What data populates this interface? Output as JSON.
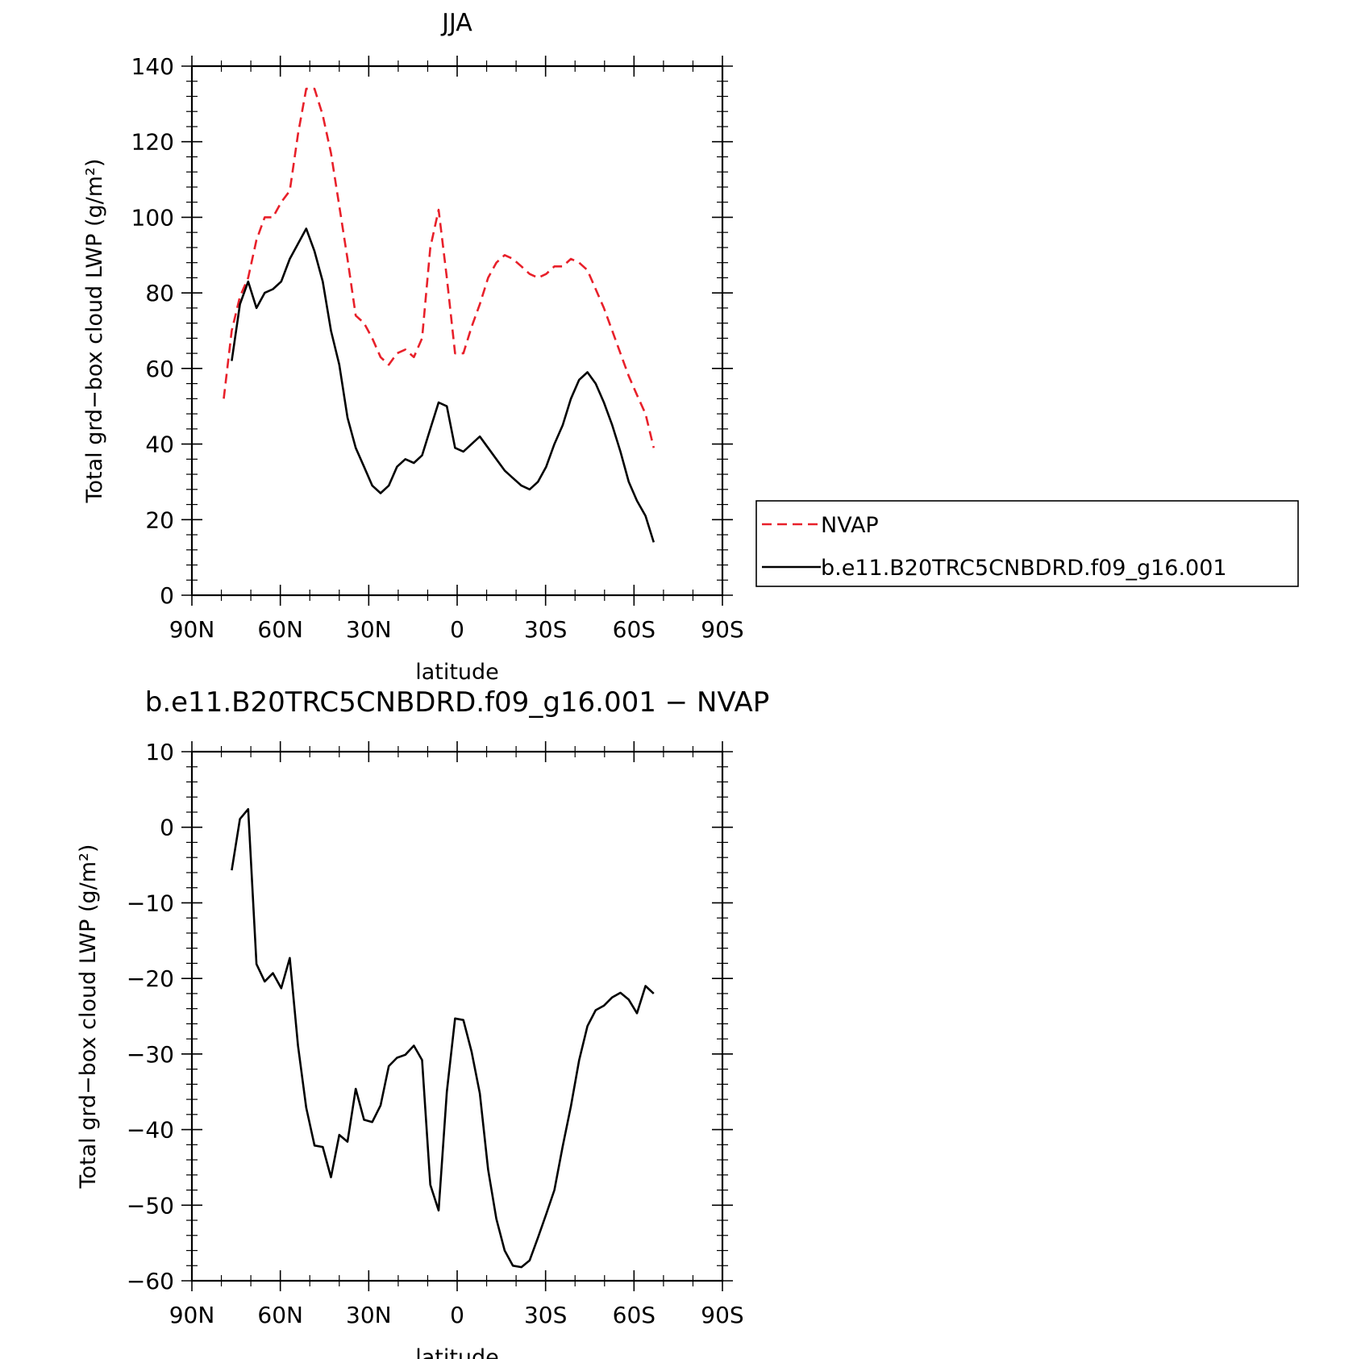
{
  "chart_data": [
    {
      "type": "line",
      "title": "JJA",
      "xlabel": "latitude",
      "ylabel": "Total grd−box cloud LWP (g/m²)",
      "xlim": [
        -90,
        90
      ],
      "ylim": [
        0,
        140
      ],
      "xticks": [
        -90,
        -60,
        -30,
        0,
        30,
        60,
        90
      ],
      "xticklabels": [
        "90N",
        "60N",
        "30N",
        "0",
        "30S",
        "60S",
        "90S"
      ],
      "yticks": [
        0,
        20,
        40,
        60,
        80,
        100,
        120,
        140
      ],
      "yticklabels": [
        "0",
        "20",
        "40",
        "60",
        "80",
        "100",
        "120",
        "140"
      ],
      "legend": "right-outside",
      "series": [
        {
          "name": "NVAP",
          "color": "#e8202a",
          "dash": "dashed",
          "x": [
            -79.2,
            -76.5,
            -73.7,
            -70.9,
            -68.1,
            -65.3,
            -62.5,
            -59.7,
            -56.8,
            -54.0,
            -51.2,
            -48.4,
            -45.6,
            -42.8,
            -40.0,
            -37.2,
            -34.4,
            -31.6,
            -28.8,
            -26.0,
            -23.2,
            -20.4,
            -17.6,
            -14.7,
            -11.9,
            -9.1,
            -6.3,
            -3.5,
            -0.7,
            2.1,
            4.9,
            7.7,
            10.5,
            13.3,
            16.1,
            18.9,
            21.8,
            24.6,
            27.4,
            30.2,
            33.0,
            35.8,
            38.6,
            41.4,
            44.2,
            47.0,
            49.8,
            52.6,
            55.4,
            58.2,
            61.0,
            63.9,
            66.7
          ],
          "values": [
            52,
            70,
            79,
            84,
            94,
            100,
            100,
            104,
            107,
            122,
            134,
            134,
            127,
            117,
            103,
            89,
            74,
            72,
            68,
            63,
            61,
            64,
            65,
            63,
            68,
            92,
            102,
            84,
            64,
            64,
            71,
            77,
            84,
            88,
            90,
            89,
            87,
            85,
            84,
            85,
            87,
            87,
            89,
            88,
            86,
            81,
            76,
            70,
            64,
            58,
            53,
            48,
            39
          ]
        },
        {
          "name": "b.e11.B20TRC5CNBDRD.f09_g16.001",
          "color": "#000000",
          "dash": "solid",
          "x": [
            -76.5,
            -73.7,
            -70.9,
            -68.1,
            -65.3,
            -62.5,
            -59.7,
            -56.8,
            -54.0,
            -51.2,
            -48.4,
            -45.6,
            -42.8,
            -40.0,
            -37.2,
            -34.4,
            -31.6,
            -28.8,
            -26.0,
            -23.2,
            -20.4,
            -17.6,
            -14.7,
            -11.9,
            -9.1,
            -6.3,
            -3.5,
            -0.7,
            2.1,
            4.9,
            7.7,
            10.5,
            13.3,
            16.1,
            18.9,
            21.8,
            24.6,
            27.4,
            30.2,
            33.0,
            35.8,
            38.6,
            41.4,
            44.2,
            47.0,
            49.8,
            52.6,
            55.4,
            58.2,
            61.0,
            63.9,
            66.7
          ],
          "values": [
            62,
            77,
            83,
            76,
            80,
            81,
            83,
            89,
            93,
            97,
            91,
            83,
            70,
            61,
            47,
            39,
            34,
            29,
            27,
            29,
            34,
            36,
            35,
            37,
            44,
            51,
            50,
            39,
            38,
            40,
            42,
            39,
            36,
            33,
            31,
            29,
            28,
            30,
            34,
            40,
            45,
            52,
            57,
            59,
            56,
            51,
            45,
            38,
            30,
            25,
            21,
            14
          ]
        }
      ]
    },
    {
      "type": "line",
      "title": "b.e11.B20TRC5CNBDRD.f09_g16.001 − NVAP",
      "xlabel": "latitude",
      "ylabel": "Total grd−box cloud LWP (g/m²)",
      "xlim": [
        -90,
        90
      ],
      "ylim": [
        -60,
        10
      ],
      "xticks": [
        -90,
        -60,
        -30,
        0,
        30,
        60,
        90
      ],
      "xticklabels": [
        "90N",
        "60N",
        "30N",
        "0",
        "30S",
        "60S",
        "90S"
      ],
      "yticks": [
        -60,
        -50,
        -40,
        -30,
        -20,
        -10,
        0,
        10
      ],
      "yticklabels": [
        "−60",
        "−50",
        "−40",
        "−30",
        "−20",
        "−10",
        "0",
        "10"
      ],
      "series": [
        {
          "color": "#000000",
          "dash": "solid",
          "x": [
            -76.5,
            -73.7,
            -70.9,
            -68.1,
            -65.3,
            -62.5,
            -59.7,
            -56.8,
            -54.0,
            -51.2,
            -48.4,
            -45.6,
            -42.8,
            -40.0,
            -37.2,
            -34.4,
            -31.6,
            -28.8,
            -26.0,
            -23.2,
            -20.4,
            -17.6,
            -14.7,
            -11.9,
            -9.1,
            -6.3,
            -3.5,
            -0.7,
            2.1,
            4.9,
            7.7,
            10.5,
            13.3,
            16.1,
            18.9,
            21.8,
            24.6,
            27.4,
            30.2,
            33.0,
            35.8,
            38.6,
            41.4,
            44.2,
            47.0,
            49.8,
            52.6,
            55.4,
            58.2,
            61.0,
            63.9,
            66.7
          ],
          "values": [
            -5.7,
            1.1,
            2.4,
            -18.1,
            -20.4,
            -19.3,
            -21.3,
            -17.3,
            -28.9,
            -37.1,
            -42.1,
            -42.3,
            -46.3,
            -40.7,
            -41.6,
            -34.6,
            -38.7,
            -39.0,
            -36.8,
            -31.6,
            -30.5,
            -30.1,
            -28.9,
            -30.8,
            -47.3,
            -50.7,
            -35.0,
            -25.3,
            -25.5,
            -29.7,
            -35.2,
            -45.3,
            -51.8,
            -56.0,
            -58.0,
            -58.2,
            -57.3,
            -54.3,
            -51.2,
            -48.0,
            -42.2,
            -36.9,
            -30.8,
            -26.3,
            -24.2,
            -23.6,
            -22.5,
            -21.9,
            -22.8,
            -24.6,
            -21.0,
            -22.0
          ]
        }
      ]
    }
  ]
}
